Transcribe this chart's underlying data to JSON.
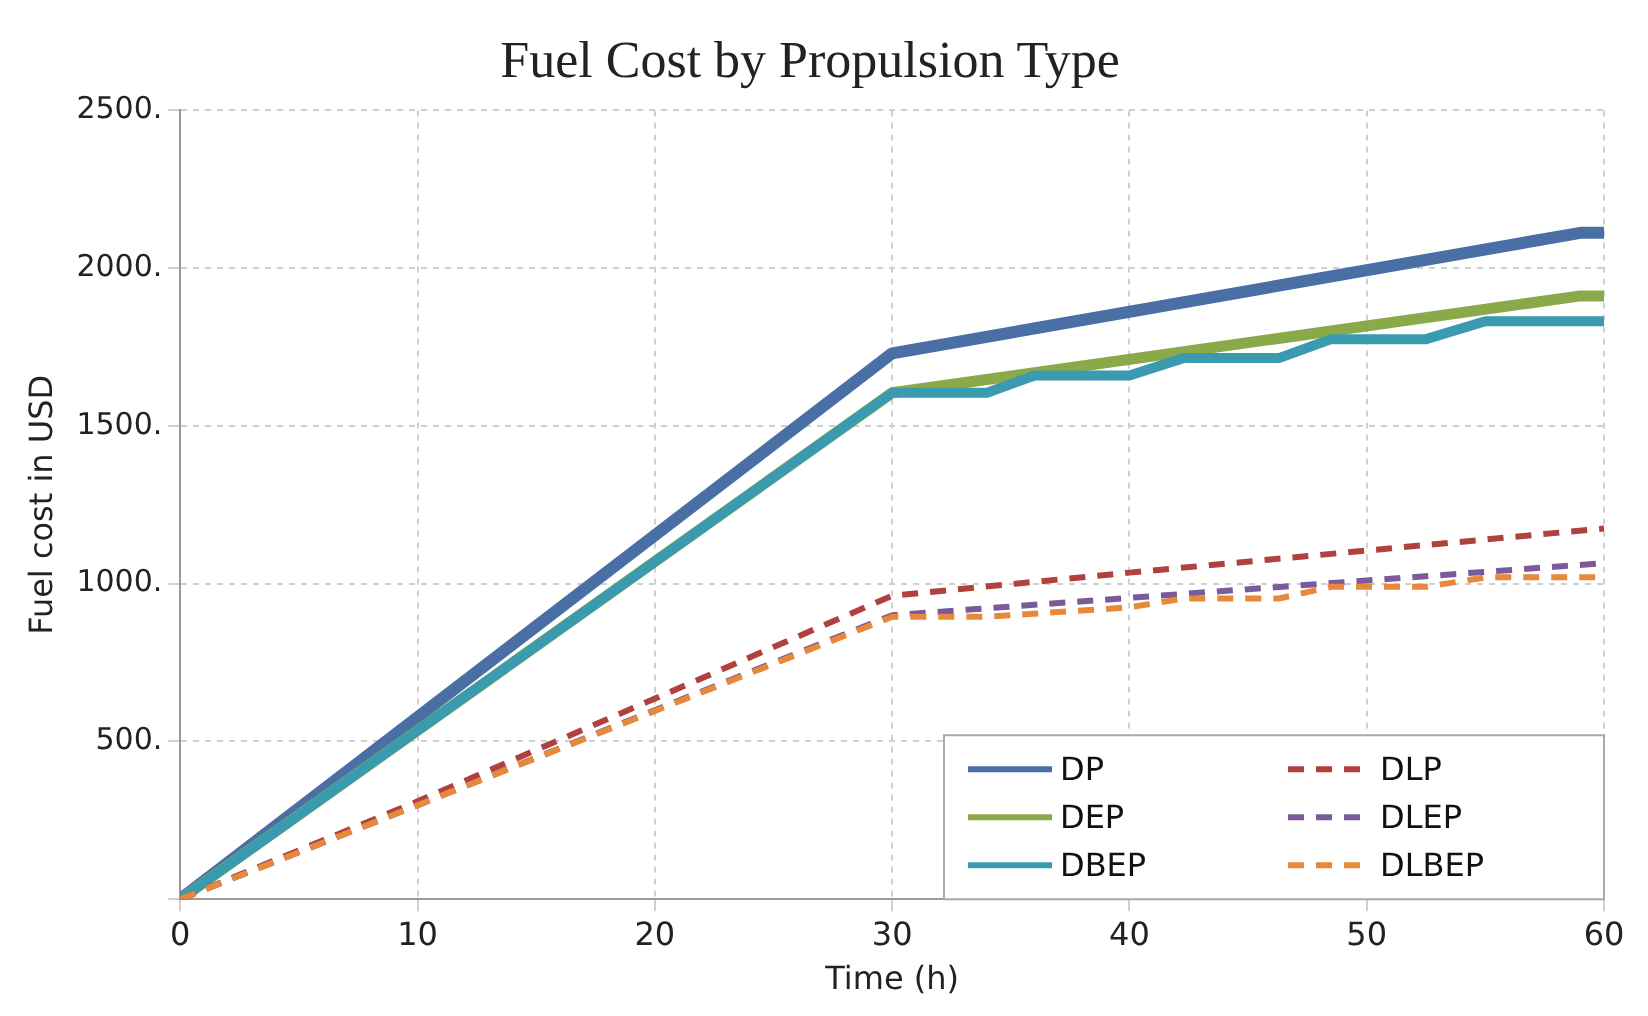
{
  "chart_data": {
    "type": "line",
    "title": "Fuel Cost by Propulsion Type",
    "xlabel": "Time (h)",
    "ylabel": "Fuel cost in USD",
    "xlim": [
      0,
      60
    ],
    "xticks": [
      0,
      10,
      20,
      30,
      40,
      50,
      60
    ],
    "ylim": [
      0,
      2500
    ],
    "yticks": [
      {
        "value": 0,
        "label": null
      },
      {
        "value": 500,
        "label": "500."
      },
      {
        "value": 1000,
        "label": "1000."
      },
      {
        "value": 1500,
        "label": "1500."
      },
      {
        "value": 2000,
        "label": "2000."
      },
      {
        "value": 2500,
        "label": "2500."
      }
    ],
    "grid": true,
    "legend": "bottom right",
    "marker": "none",
    "series": [
      {
        "name": "DP",
        "color": "#4a6fa5",
        "line_style": "solid",
        "x": [
          0,
          30,
          59,
          60
        ],
        "values": [
          0,
          1730,
          2112,
          2112
        ]
      },
      {
        "name": "DEP",
        "color": "#8aaa4a",
        "line_style": "solid",
        "x": [
          0,
          30,
          59,
          60
        ],
        "values": [
          0,
          1605,
          1912,
          1912
        ]
      },
      {
        "name": "DBEP",
        "color": "#3a9ab0",
        "line_style": "solid",
        "x": [
          0,
          30,
          34,
          36,
          40,
          42.3,
          46.3,
          48.5,
          52.5,
          55,
          60
        ],
        "values": [
          0,
          1605,
          1605,
          1660,
          1660,
          1715,
          1715,
          1775,
          1775,
          1832,
          1832
        ]
      },
      {
        "name": "DLP",
        "color": "#b0413e",
        "line_style": "dashed",
        "x": [
          0,
          10,
          30,
          40,
          50,
          60
        ],
        "values": [
          0,
          310,
          962,
          1035,
          1105,
          1175
        ]
      },
      {
        "name": "DLEP",
        "color": "#7a5a9a",
        "line_style": "dashed",
        "x": [
          0,
          10,
          30,
          40,
          50,
          60
        ],
        "values": [
          0,
          298,
          900,
          955,
          1010,
          1065
        ]
      },
      {
        "name": "DLBEP",
        "color": "#e8883a",
        "line_style": "dashed",
        "x": [
          0,
          10,
          30,
          34,
          40,
          42.3,
          46.3,
          48.5,
          52.5,
          55,
          60
        ],
        "values": [
          0,
          298,
          895,
          895,
          925,
          953,
          953,
          990,
          990,
          1020,
          1020
        ]
      }
    ]
  }
}
